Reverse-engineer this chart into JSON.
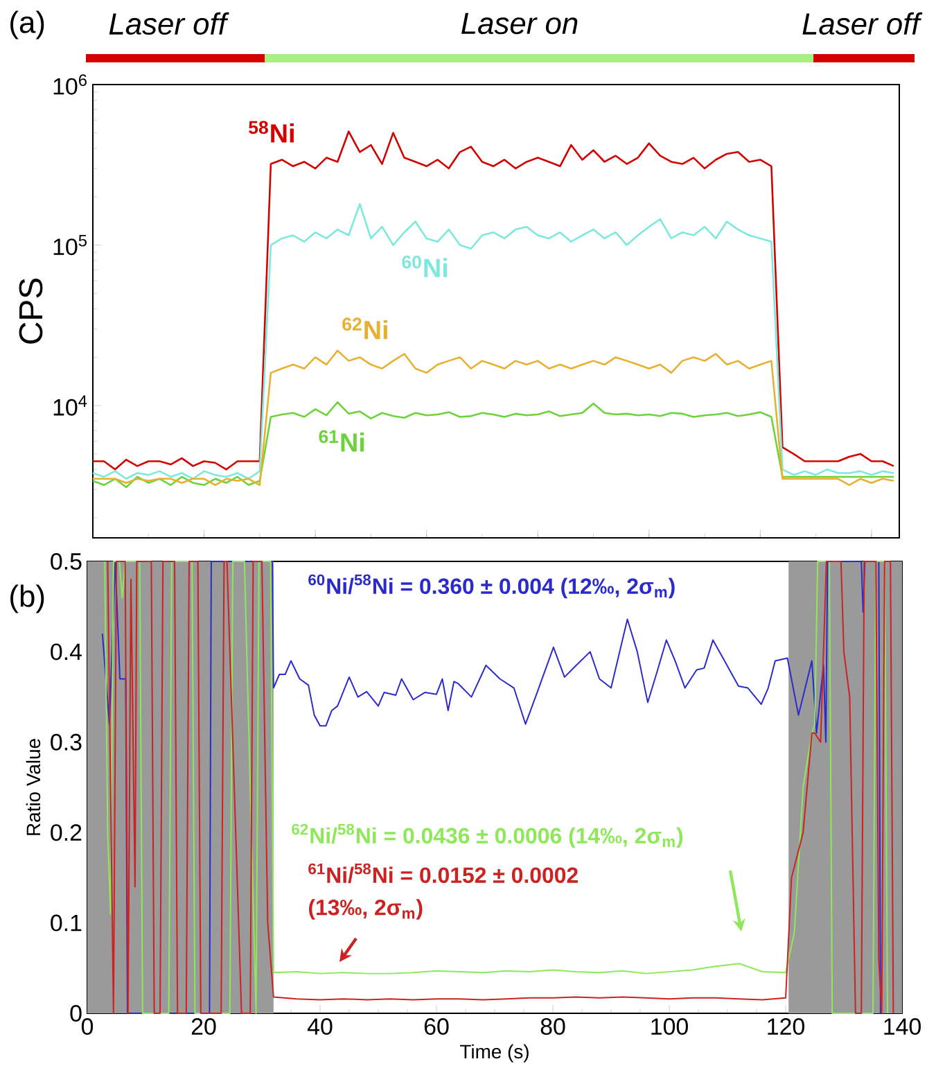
{
  "chart_data": [
    {
      "type": "line",
      "ylabel": "CPS",
      "log": "y",
      "tick_labels": "y",
      "ylim": [
        1500,
        1000000
      ],
      "yticks": [
        {
          "value": 10000,
          "label": "10$^{4}$"
        },
        {
          "value": 100000,
          "label": "10$^{5}$"
        },
        {
          "value": 1000000,
          "label": "10$^{6}$"
        }
      ],
      "annotations": [
        "(a)",
        "Laser off",
        "Laser on",
        "Laser off"
      ],
      "categories": [
        null,
        null,
        null,
        null,
        null,
        null,
        null,
        null,
        null,
        null,
        null,
        null,
        null,
        null,
        null,
        null,
        null,
        null,
        null,
        null,
        null,
        null,
        null,
        null,
        null,
        null,
        null,
        null,
        null,
        null,
        null,
        null,
        null,
        null,
        null,
        null,
        null,
        null,
        null,
        null,
        null,
        null,
        null,
        null,
        null,
        null,
        null,
        null,
        null,
        null,
        null,
        null,
        null,
        null,
        null,
        null,
        null,
        null,
        null,
        null,
        null,
        null,
        null,
        null,
        null,
        null,
        null,
        null,
        null,
        null,
        null,
        null,
        null
      ],
      "series": [
        {
          "name": "$^{58}$Ni",
          "color": "#d40000",
          "values": [
            4500,
            4500,
            4000,
            4600,
            4200,
            4500,
            4500,
            4300,
            4700,
            4200,
            4500,
            4400,
            4000,
            4500,
            4500,
            4500,
            320000,
            340000,
            310000,
            330000,
            300000,
            350000,
            330000,
            510000,
            380000,
            420000,
            320000,
            500000,
            350000,
            330000,
            310000,
            340000,
            300000,
            380000,
            410000,
            330000,
            310000,
            340000,
            300000,
            330000,
            350000,
            330000,
            310000,
            420000,
            340000,
            390000,
            330000,
            360000,
            320000,
            350000,
            430000,
            360000,
            330000,
            320000,
            350000,
            300000,
            340000,
            370000,
            380000,
            330000,
            340000,
            310000,
            5500,
            5000,
            4500,
            4500,
            4500,
            4500,
            4800,
            5000,
            4500,
            4500,
            4200
          ]
        },
        {
          "name": "$^{60}$Ni",
          "color": "#7de8dc",
          "values": [
            3800,
            3600,
            3900,
            3500,
            3800,
            3700,
            3900,
            3600,
            3800,
            3500,
            3900,
            3700,
            3600,
            3800,
            3500,
            3900,
            100000,
            110000,
            115000,
            105000,
            120000,
            110000,
            125000,
            115000,
            180000,
            110000,
            130000,
            100000,
            120000,
            140000,
            110000,
            105000,
            125000,
            100000,
            95000,
            115000,
            120000,
            110000,
            125000,
            130000,
            115000,
            110000,
            120000,
            105000,
            115000,
            125000,
            110000,
            120000,
            100000,
            115000,
            130000,
            145000,
            110000,
            120000,
            115000,
            130000,
            110000,
            140000,
            125000,
            115000,
            110000,
            105000,
            4000,
            3700,
            3900,
            3700,
            4000,
            3800,
            3800,
            3900,
            3700,
            3900,
            3800
          ]
        },
        {
          "name": "$^{61}$Ni",
          "color": "#6cd43a",
          "values": [
            3400,
            3200,
            3500,
            3100,
            3600,
            3300,
            3500,
            3200,
            3600,
            3300,
            3200,
            3500,
            3300,
            3600,
            3200,
            3400,
            8500,
            8800,
            9000,
            8500,
            9500,
            8700,
            10500,
            8900,
            9200,
            8300,
            9000,
            8600,
            8400,
            9000,
            8700,
            8800,
            9100,
            8500,
            8600,
            9000,
            8800,
            8500,
            8900,
            8700,
            8800,
            9200,
            8600,
            8800,
            9000,
            10300,
            9000,
            8800,
            8900,
            8700,
            8800,
            8600,
            9000,
            8900,
            8500,
            8700,
            8800,
            9000,
            8600,
            8800,
            9100,
            8500,
            3600,
            3600,
            3600,
            3600,
            3600,
            3600,
            3600,
            3600,
            3600,
            3600,
            3600
          ]
        },
        {
          "name": "$^{62}$Ni",
          "color": "#e8b030",
          "values": [
            3500,
            3500,
            3500,
            3300,
            3500,
            3400,
            3500,
            3500,
            3300,
            3500,
            3500,
            3200,
            3500,
            3400,
            3500,
            3200,
            16000,
            17000,
            18000,
            17000,
            20000,
            18000,
            22000,
            19000,
            20000,
            18000,
            17000,
            19000,
            21000,
            17000,
            16000,
            18000,
            19000,
            20000,
            17000,
            19000,
            18000,
            17000,
            19000,
            18000,
            19000,
            17000,
            18000,
            17000,
            18000,
            19000,
            18000,
            20000,
            19000,
            18000,
            17000,
            18000,
            16000,
            19000,
            20000,
            19000,
            21000,
            18000,
            19000,
            17000,
            18000,
            19000,
            3500,
            3500,
            3500,
            3500,
            3500,
            3500,
            3200,
            3500,
            3300,
            3500,
            3400
          ]
        }
      ]
    },
    {
      "type": "line",
      "xlabel": "Time (s)",
      "ylabel": "Ratio Value",
      "xlim": [
        0,
        140
      ],
      "ylim": [
        0,
        0.5
      ],
      "xticks": [
        0,
        20,
        40,
        60,
        80,
        100,
        120,
        140
      ],
      "yticks": [
        0,
        0.1,
        0.2,
        0.3,
        0.4,
        0.5
      ],
      "annotations": [
        "(b)",
        "**$^{60}$Ni/$^{58}$Ni = 0.360 ± 0.004 (12‰, 2σ$_{m}$)**",
        "**$^{62}$Ni/$^{58}$Ni = 0.0436 ± 0.0006 (14‰, 2σ$_{m}$)**",
        "**$^{61}$Ni/$^{58}$Ni = 0.0152 ± 0.0002**",
        "**(13‰, 2σ$_{m}$)**"
      ],
      "bands": [
        {
          "axis": "x",
          "from": 0,
          "to": 32,
          "color": "#9a9a9a"
        },
        {
          "axis": "x",
          "from": 120.5,
          "to": 140,
          "color": "#9a9a9a"
        }
      ],
      "series": [
        {
          "color": "#2b2bcc",
          "x": [
            2.6,
            3.8,
            4.8,
            5.6,
            6.6,
            6.9,
            21,
            21.3,
            31.8,
            32,
            33,
            34,
            35,
            36.5,
            38,
            39,
            40,
            41,
            42,
            43,
            45,
            46.5,
            48,
            50,
            51,
            53,
            54,
            56,
            58,
            60,
            61,
            62,
            63,
            63.7,
            66,
            68.5,
            70.9,
            73.3,
            75.3,
            77.3,
            80.1,
            82,
            84,
            86.4,
            88,
            90,
            92.8,
            94.5,
            96.3,
            98,
            99.5,
            101,
            102.7,
            104.7,
            106,
            107.5,
            109.5,
            111.9,
            113.5,
            115.8,
            117,
            118.2,
            120.3,
            122.2,
            124.5,
            125.3,
            126.5,
            126.9,
            127.2,
            133,
            133.3,
            133.6,
            136,
            136.3
          ],
          "values": [
            0.42,
            0.32,
            0.5,
            0.37,
            0.37,
            0,
            0,
            0.5,
            0.5,
            0.36,
            0.375,
            0.375,
            0.39,
            0.37,
            0.363,
            0.33,
            0.318,
            0.318,
            0.335,
            0.34,
            0.372,
            0.35,
            0.356,
            0.34,
            0.355,
            0.352,
            0.37,
            0.347,
            0.355,
            0.353,
            0.37,
            0.335,
            0.367,
            0.365,
            0.35,
            0.385,
            0.37,
            0.36,
            0.32,
            0.355,
            0.405,
            0.372,
            0.385,
            0.4,
            0.37,
            0.36,
            0.436,
            0.4,
            0.344,
            0.38,
            0.413,
            0.39,
            0.36,
            0.38,
            0.382,
            0.413,
            0.39,
            0.362,
            0.36,
            0.342,
            0.36,
            0.39,
            0.393,
            0.33,
            0.39,
            0.31,
            0.385,
            0.3,
            0.5,
            0.5,
            0.444,
            0.5,
            0.5,
            0
          ]
        },
        {
          "color": "#8ee85a",
          "x": [
            3,
            3.5,
            4,
            4.5,
            5.5,
            6,
            6.5,
            9,
            9.5,
            14,
            14.5,
            18,
            18.5,
            24.5,
            25,
            27,
            29,
            29.5,
            31.5,
            32,
            36,
            40,
            44,
            48,
            52,
            56,
            60,
            64,
            68,
            72,
            76,
            80,
            84,
            88,
            92,
            96,
            100,
            104,
            108,
            112,
            116,
            120,
            121.5,
            123,
            124.5,
            125,
            125.5,
            127.5,
            128,
            135,
            135.5,
            137,
            137.5
          ],
          "values": [
            0.5,
            0.2,
            0.11,
            0.5,
            0.5,
            0.46,
            0.5,
            0.5,
            0,
            0,
            0.5,
            0.5,
            0,
            0,
            0.5,
            0.5,
            0,
            0.5,
            0.5,
            0.045,
            0.046,
            0.044,
            0.045,
            0.044,
            0.044,
            0.045,
            0.047,
            0.046,
            0.045,
            0.047,
            0.046,
            0.048,
            0.046,
            0.045,
            0.047,
            0.044,
            0.046,
            0.048,
            0.052,
            0.055,
            0.046,
            0.045,
            0.09,
            0.25,
            0.31,
            0.32,
            0.5,
            0.5,
            0,
            0,
            0.5,
            0.5,
            0
          ]
        },
        {
          "color": "#cc2222",
          "x": [
            3.5,
            4.5,
            5,
            6.5,
            7,
            7.5,
            8.2,
            8.5,
            11,
            11.5,
            12.5,
            13,
            15,
            15.5,
            17,
            17.5,
            19,
            19.5,
            23,
            23.5,
            24,
            26,
            26.5,
            28,
            28.5,
            30,
            31,
            32,
            36,
            40,
            44,
            48,
            52,
            56,
            60,
            64,
            68,
            72,
            76,
            80,
            84,
            88,
            92,
            96,
            100,
            104,
            108,
            112,
            116,
            120,
            121,
            123,
            124.5,
            125,
            126,
            127,
            129.5,
            130,
            131,
            132,
            133,
            133.5,
            135.5,
            136,
            136.5,
            137,
            138,
            138.5
          ],
          "values": [
            0.5,
            0,
            0.5,
            0.5,
            0,
            0.48,
            0.14,
            0.5,
            0.5,
            0,
            0,
            0.5,
            0.5,
            0,
            0,
            0.5,
            0.5,
            0,
            0,
            0.5,
            0.5,
            0.1,
            0,
            0,
            0.5,
            0.5,
            0.1,
            0.018,
            0.016,
            0.015,
            0.016,
            0.015,
            0.016,
            0.015,
            0.016,
            0.016,
            0.015,
            0.016,
            0.017,
            0.017,
            0.018,
            0.017,
            0.018,
            0.017,
            0.016,
            0.017,
            0.017,
            0.016,
            0.015,
            0.017,
            0.15,
            0.2,
            0.31,
            0.31,
            0.3,
            0.5,
            0.5,
            0.4,
            0.35,
            0,
            0,
            0.5,
            0.5,
            0.06,
            0,
            0.5,
            0.5,
            0
          ]
        }
      ]
    }
  ]
}
